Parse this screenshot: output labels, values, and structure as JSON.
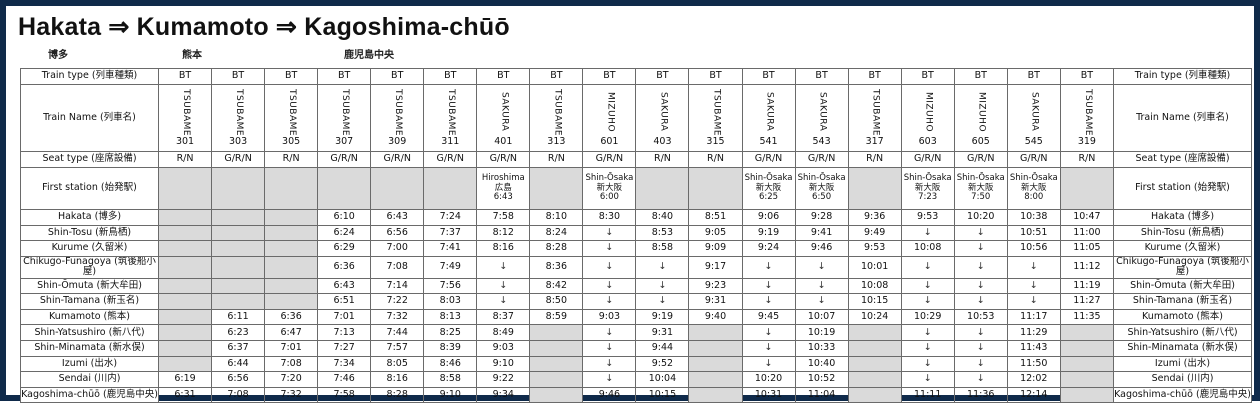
{
  "title": "Hakata ⇒ Kumamoto ⇒ Kagoshima-chūō",
  "kanji": [
    "博多",
    "熊本",
    "鹿児島中央"
  ],
  "row_labels": {
    "type": "Train type (列車種類)",
    "name": "Train Name (列車名)",
    "seat": "Seat type (座席設備)",
    "first": "First station (始発駅)"
  },
  "trains": [
    {
      "type": "BT",
      "name": "TSUBAME",
      "number": "301",
      "seat": "R/N",
      "first": [
        "",
        "",
        ""
      ]
    },
    {
      "type": "BT",
      "name": "TSUBAME",
      "number": "303",
      "seat": "G/R/N",
      "first": [
        "",
        "",
        ""
      ]
    },
    {
      "type": "BT",
      "name": "TSUBAME",
      "number": "305",
      "seat": "R/N",
      "first": [
        "",
        "",
        ""
      ]
    },
    {
      "type": "BT",
      "name": "TSUBAME",
      "number": "307",
      "seat": "G/R/N",
      "first": [
        "",
        "",
        ""
      ]
    },
    {
      "type": "BT",
      "name": "TSUBAME",
      "number": "309",
      "seat": "G/R/N",
      "first": [
        "",
        "",
        ""
      ]
    },
    {
      "type": "BT",
      "name": "TSUBAME",
      "number": "311",
      "seat": "G/R/N",
      "first": [
        "",
        "",
        ""
      ]
    },
    {
      "type": "BT",
      "name": "SAKURA",
      "number": "401",
      "seat": "G/R/N",
      "first": [
        "Hiroshima",
        "広島",
        "6:43"
      ]
    },
    {
      "type": "BT",
      "name": "TSUBAME",
      "number": "313",
      "seat": "R/N",
      "first": [
        "",
        "",
        ""
      ]
    },
    {
      "type": "BT",
      "name": "MIZUHO",
      "number": "601",
      "seat": "G/R/N",
      "first": [
        "Shin-Ōsaka",
        "新大阪",
        "6:00"
      ]
    },
    {
      "type": "BT",
      "name": "SAKURA",
      "number": "403",
      "seat": "R/N",
      "first": [
        "",
        "",
        ""
      ]
    },
    {
      "type": "BT",
      "name": "TSUBAME",
      "number": "315",
      "seat": "R/N",
      "first": [
        "",
        "",
        ""
      ]
    },
    {
      "type": "BT",
      "name": "SAKURA",
      "number": "541",
      "seat": "G/R/N",
      "first": [
        "Shin-Ōsaka",
        "新大阪",
        "6:25"
      ]
    },
    {
      "type": "BT",
      "name": "SAKURA",
      "number": "543",
      "seat": "G/R/N",
      "first": [
        "Shin-Ōsaka",
        "新大阪",
        "6:50"
      ]
    },
    {
      "type": "BT",
      "name": "TSUBAME",
      "number": "317",
      "seat": "R/N",
      "first": [
        "",
        "",
        ""
      ]
    },
    {
      "type": "BT",
      "name": "MIZUHO",
      "number": "603",
      "seat": "G/R/N",
      "first": [
        "Shin-Ōsaka",
        "新大阪",
        "7:23"
      ]
    },
    {
      "type": "BT",
      "name": "MIZUHO",
      "number": "605",
      "seat": "G/R/N",
      "first": [
        "Shin-Ōsaka",
        "新大阪",
        "7:50"
      ]
    },
    {
      "type": "BT",
      "name": "SAKURA",
      "number": "545",
      "seat": "G/R/N",
      "first": [
        "Shin-Ōsaka",
        "新大阪",
        "8:00"
      ]
    },
    {
      "type": "BT",
      "name": "TSUBAME",
      "number": "319",
      "seat": "R/N",
      "first": [
        "",
        "",
        ""
      ]
    }
  ],
  "stations": [
    {
      "name": "Hakata (博多)",
      "times": [
        "",
        "",
        "",
        "6:10",
        "6:43",
        "7:24",
        "7:58",
        "8:10",
        "8:30",
        "8:40",
        "8:51",
        "9:06",
        "9:28",
        "9:36",
        "9:53",
        "10:20",
        "10:38",
        "10:47"
      ]
    },
    {
      "name": "Shin-Tosu (新鳥栖)",
      "times": [
        "",
        "",
        "",
        "6:24",
        "6:56",
        "7:37",
        "8:12",
        "8:24",
        "↓",
        "8:53",
        "9:05",
        "9:19",
        "9:41",
        "9:49",
        "↓",
        "↓",
        "10:51",
        "11:00"
      ]
    },
    {
      "name": "Kurume (久留米)",
      "times": [
        "",
        "",
        "",
        "6:29",
        "7:00",
        "7:41",
        "8:16",
        "8:28",
        "↓",
        "8:58",
        "9:09",
        "9:24",
        "9:46",
        "9:53",
        "10:08",
        "↓",
        "10:56",
        "11:05"
      ]
    },
    {
      "name": "Chikugo-Funagoya (筑後船小屋)",
      "times": [
        "",
        "",
        "",
        "6:36",
        "7:08",
        "7:49",
        "↓",
        "8:36",
        "↓",
        "↓",
        "9:17",
        "↓",
        "↓",
        "10:01",
        "↓",
        "↓",
        "↓",
        "11:12"
      ]
    },
    {
      "name": "Shin-Ōmuta (新大牟田)",
      "times": [
        "",
        "",
        "",
        "6:43",
        "7:14",
        "7:56",
        "↓",
        "8:42",
        "↓",
        "↓",
        "9:23",
        "↓",
        "↓",
        "10:08",
        "↓",
        "↓",
        "↓",
        "11:19"
      ]
    },
    {
      "name": "Shin-Tamana (新玉名)",
      "times": [
        "",
        "",
        "",
        "6:51",
        "7:22",
        "8:03",
        "↓",
        "8:50",
        "↓",
        "↓",
        "9:31",
        "↓",
        "↓",
        "10:15",
        "↓",
        "↓",
        "↓",
        "11:27"
      ]
    },
    {
      "name": "Kumamoto (熊本)",
      "times": [
        "",
        "6:11",
        "6:36",
        "7:01",
        "7:32",
        "8:13",
        "8:37",
        "8:59",
        "9:03",
        "9:19",
        "9:40",
        "9:45",
        "10:07",
        "10:24",
        "10:29",
        "10:53",
        "11:17",
        "11:35"
      ]
    },
    {
      "name": "Shin-Yatsushiro (新八代)",
      "times": [
        "",
        "6:23",
        "6:47",
        "7:13",
        "7:44",
        "8:25",
        "8:49",
        "",
        "↓",
        "9:31",
        "",
        "↓",
        "10:19",
        "",
        "↓",
        "↓",
        "11:29",
        ""
      ]
    },
    {
      "name": "Shin-Minamata (新水俣)",
      "times": [
        "",
        "6:37",
        "7:01",
        "7:27",
        "7:57",
        "8:39",
        "9:03",
        "",
        "↓",
        "9:44",
        "",
        "↓",
        "10:33",
        "",
        "↓",
        "↓",
        "11:43",
        ""
      ]
    },
    {
      "name": "Izumi (出水)",
      "times": [
        "",
        "6:44",
        "7:08",
        "7:34",
        "8:05",
        "8:46",
        "9:10",
        "",
        "↓",
        "9:52",
        "",
        "↓",
        "10:40",
        "",
        "↓",
        "↓",
        "11:50",
        ""
      ]
    },
    {
      "name": "Sendai (川内)",
      "times": [
        "6:19",
        "6:56",
        "7:20",
        "7:46",
        "8:16",
        "8:58",
        "9:22",
        "",
        "↓",
        "10:04",
        "",
        "10:20",
        "10:52",
        "",
        "↓",
        "↓",
        "12:02",
        ""
      ]
    },
    {
      "name": "Kagoshima-chūō (鹿児島中央)",
      "times": [
        "6:31",
        "7:08",
        "7:32",
        "7:58",
        "8:28",
        "9:10",
        "9:34",
        "",
        "9:46",
        "10:15",
        "",
        "10:31",
        "11:04",
        "",
        "11:11",
        "11:36",
        "12:14",
        ""
      ]
    }
  ]
}
